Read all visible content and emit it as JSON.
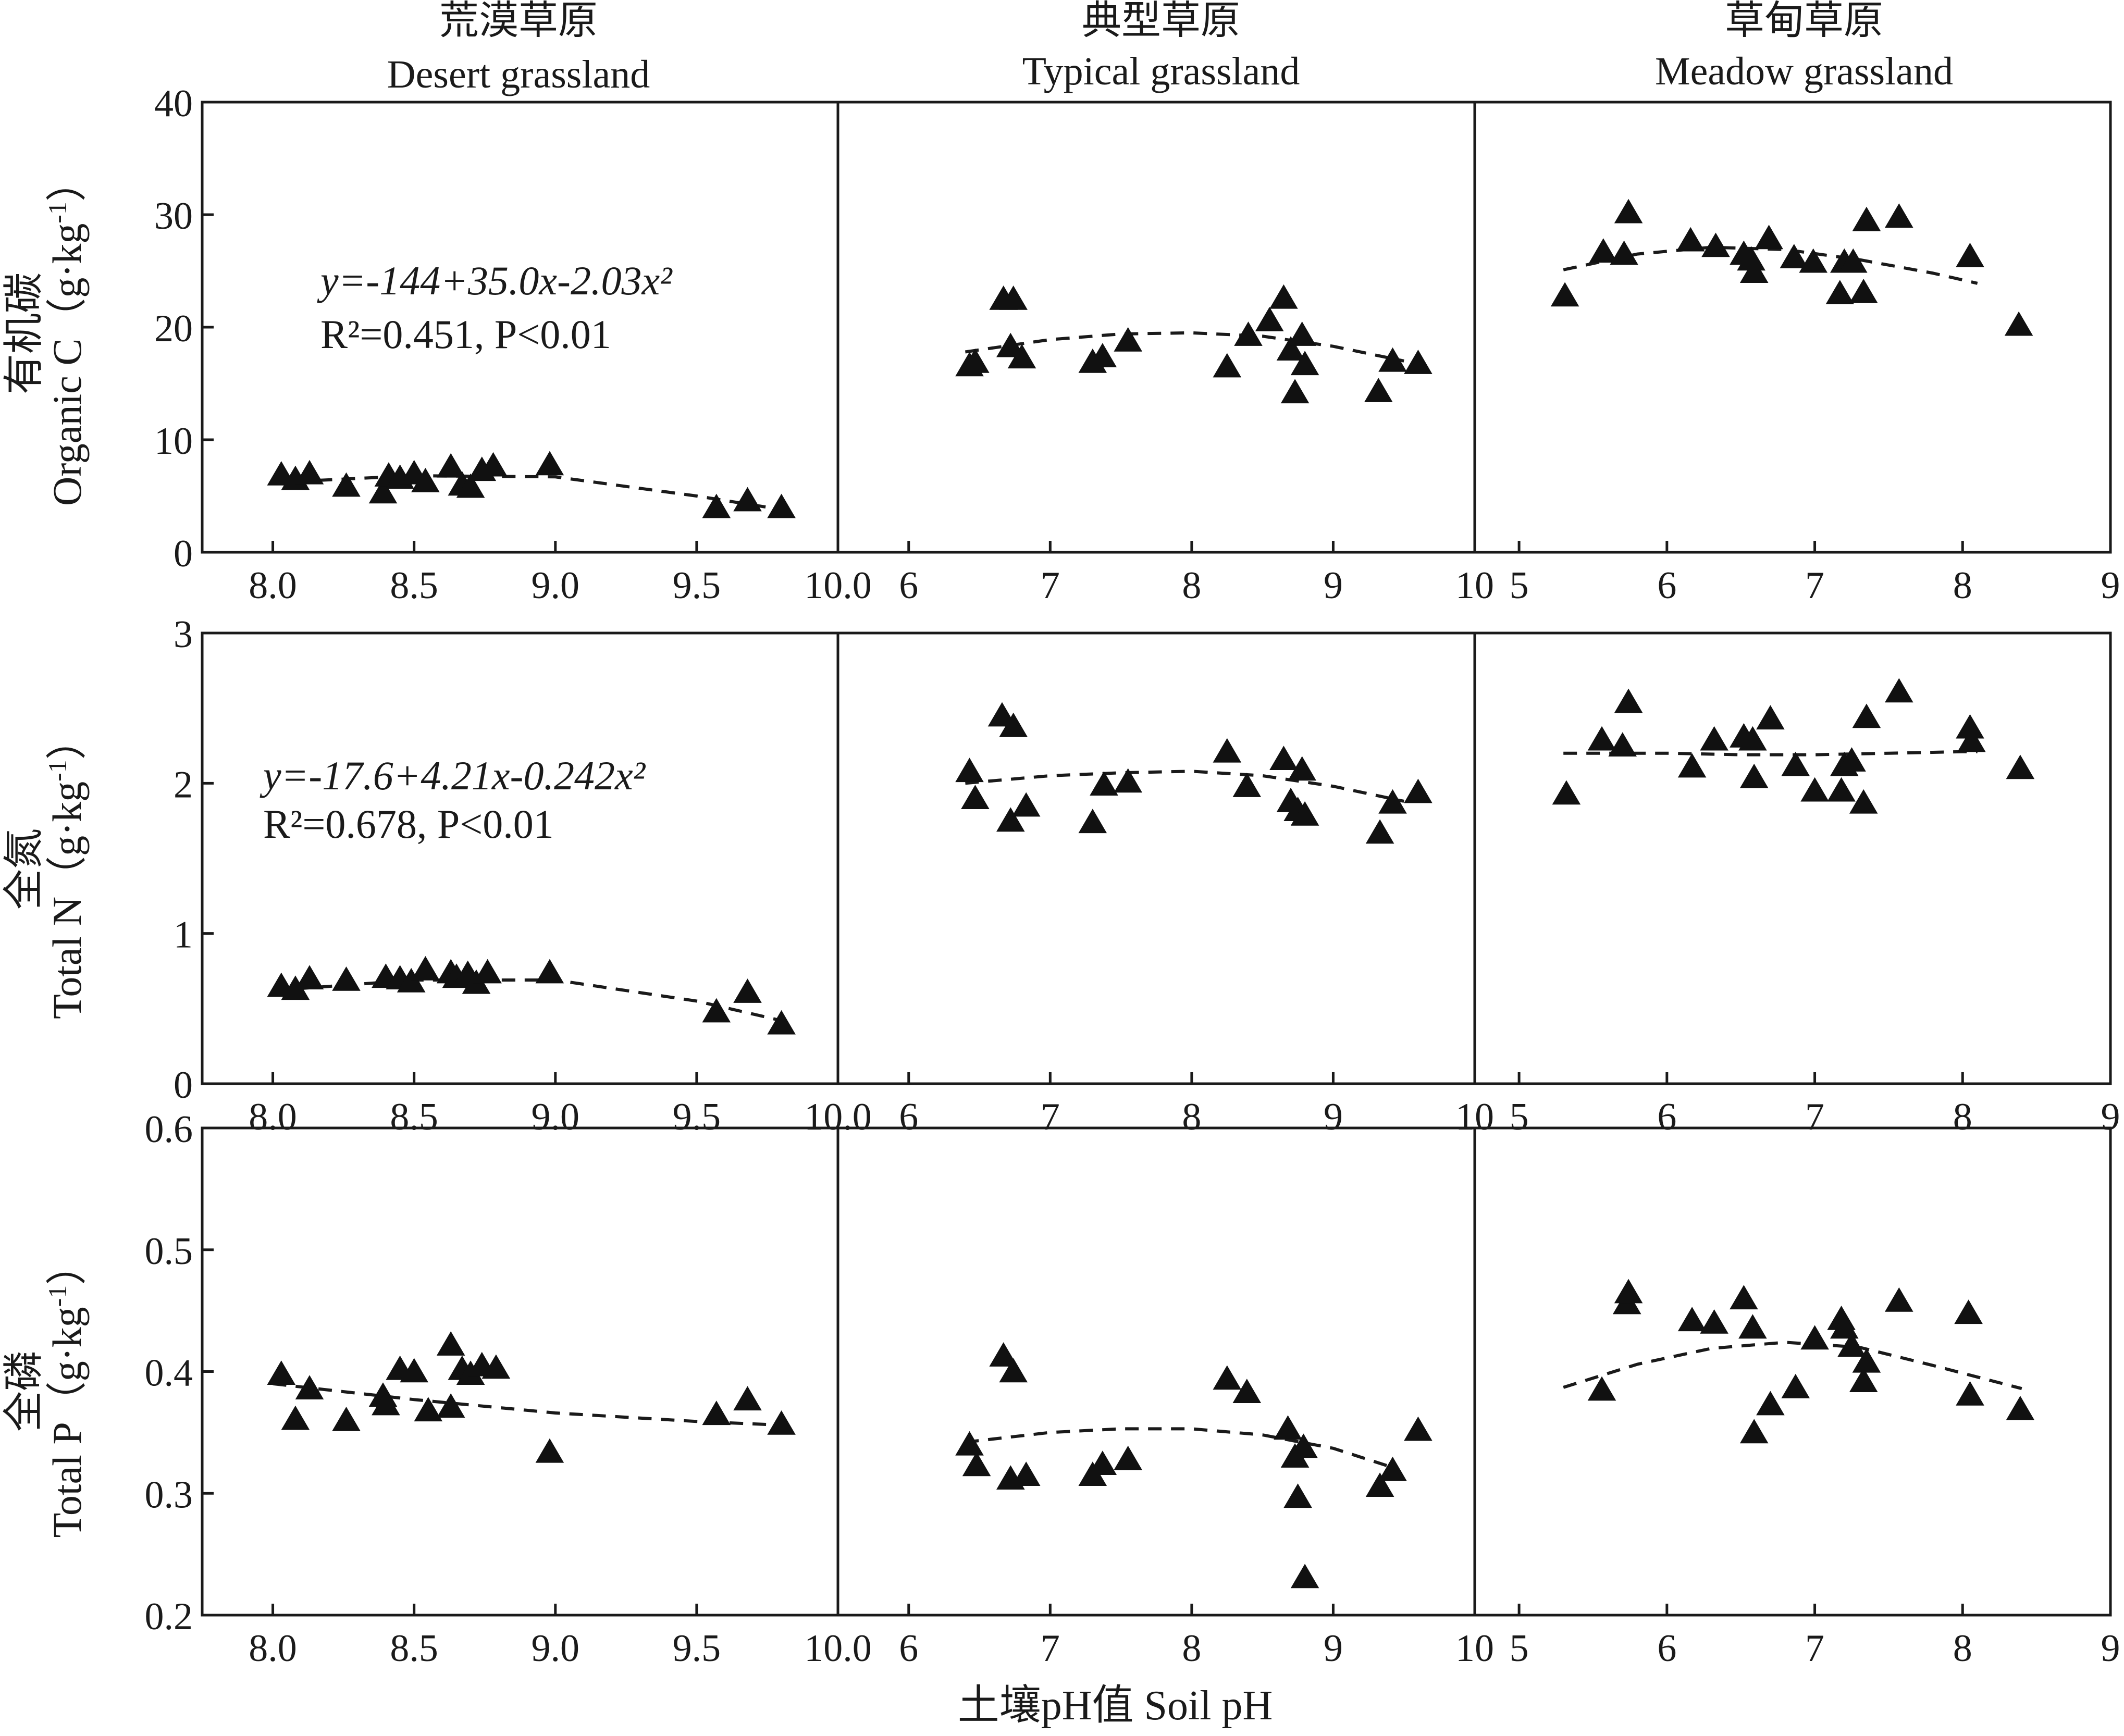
{
  "figure": {
    "column_titles": [
      {
        "cn": "荒漠草原",
        "en": "Desert grassland"
      },
      {
        "cn": "典型草原",
        "en": "Typical grassland"
      },
      {
        "cn": "草甸草原",
        "en": "Meadow grassland"
      }
    ],
    "x_axis_label": "土壤pH值 Soil pH",
    "row_labels": [
      {
        "cn": "有机碳",
        "en": "Organic C（g·kg",
        "unit_sup": "-1",
        "close": "）"
      },
      {
        "cn": "全氮",
        "en": "Total N（g·kg",
        "unit_sup": "-1",
        "close": "）"
      },
      {
        "cn": "全磷",
        "en": "Total P（g·kg",
        "unit_sup": "-1",
        "close": "）"
      }
    ],
    "equations": [
      {
        "line1": "y=-144+35.0x-2.03x²",
        "line2": "R²=0.451, P<0.01"
      },
      {
        "line1": "y=-17.6+4.21x-0.242x²",
        "line2": "R²=0.678, P<0.01"
      }
    ]
  },
  "chart_data": {
    "type": "scatter",
    "marker": "filled-triangle",
    "fit": "quadratic-dashed",
    "x_axes": [
      {
        "panel_column": 0,
        "xlim": [
          7.75,
          10.0
        ],
        "ticks": [
          8.0,
          8.5,
          9.0,
          9.5,
          10.0
        ],
        "tick_labels": [
          "8.0",
          "8.5",
          "9.0",
          "9.5",
          "10.0"
        ]
      },
      {
        "panel_column": 1,
        "xlim": [
          5.5,
          10
        ],
        "ticks": [
          6,
          7,
          8,
          9,
          10
        ],
        "tick_labels": [
          "6",
          "7",
          "8",
          "9",
          "10"
        ]
      },
      {
        "panel_column": 2,
        "xlim": [
          4.7,
          9
        ],
        "ticks": [
          5,
          6,
          7,
          8,
          9
        ],
        "tick_labels": [
          "5",
          "6",
          "7",
          "8",
          "9"
        ]
      }
    ],
    "y_axes": [
      {
        "panel_row": 0,
        "ylim": [
          0,
          40
        ],
        "ticks": [
          0,
          10,
          20,
          30,
          40
        ],
        "tick_labels": [
          "0",
          "10",
          "20",
          "30",
          "40"
        ]
      },
      {
        "panel_row": 1,
        "ylim": [
          0,
          3
        ],
        "ticks": [
          0,
          1,
          2,
          3
        ],
        "tick_labels": [
          "0",
          "1",
          "2",
          "3"
        ]
      },
      {
        "panel_row": 2,
        "ylim": [
          0.2,
          0.6
        ],
        "ticks": [
          0.2,
          0.3,
          0.4,
          0.5,
          0.6
        ],
        "tick_labels": [
          "0.2",
          "0.3",
          "0.4",
          "0.5",
          "0.6"
        ]
      }
    ],
    "panels": [
      {
        "row": 0,
        "col": 0,
        "fit_curve": [
          [
            8.0,
            6.2
          ],
          [
            8.5,
            6.8
          ],
          [
            9.0,
            6.7
          ],
          [
            9.5,
            5.0
          ],
          [
            9.8,
            3.8
          ]
        ],
        "points": [
          [
            8.03,
            6.9
          ],
          [
            8.08,
            6.5
          ],
          [
            8.13,
            7.0
          ],
          [
            8.26,
            5.9
          ],
          [
            8.39,
            5.3
          ],
          [
            8.41,
            6.8
          ],
          [
            8.45,
            6.6
          ],
          [
            8.5,
            7.0
          ],
          [
            8.54,
            6.3
          ],
          [
            8.63,
            7.6
          ],
          [
            8.67,
            6.0
          ],
          [
            8.7,
            5.8
          ],
          [
            8.74,
            7.3
          ],
          [
            8.78,
            7.7
          ],
          [
            8.98,
            7.8
          ],
          [
            9.57,
            4.0
          ],
          [
            9.68,
            4.6
          ],
          [
            9.8,
            4.0
          ]
        ]
      },
      {
        "row": 0,
        "col": 1,
        "fit_curve": [
          [
            6.4,
            17.8
          ],
          [
            7.0,
            18.9
          ],
          [
            7.5,
            19.4
          ],
          [
            8.0,
            19.5
          ],
          [
            8.5,
            19.2
          ],
          [
            9.0,
            18.3
          ],
          [
            9.5,
            17.0
          ]
        ],
        "points": [
          [
            6.43,
            16.6
          ],
          [
            6.47,
            16.9
          ],
          [
            6.67,
            22.5
          ],
          [
            6.72,
            18.3
          ],
          [
            6.74,
            22.5
          ],
          [
            6.8,
            17.3
          ],
          [
            7.3,
            16.9
          ],
          [
            7.37,
            17.4
          ],
          [
            7.55,
            18.8
          ],
          [
            8.25,
            16.5
          ],
          [
            8.4,
            19.3
          ],
          [
            8.55,
            20.6
          ],
          [
            8.65,
            22.6
          ],
          [
            8.7,
            18.0
          ],
          [
            8.73,
            14.2
          ],
          [
            8.78,
            19.3
          ],
          [
            8.8,
            16.7
          ],
          [
            9.32,
            14.3
          ],
          [
            9.42,
            17.0
          ],
          [
            9.6,
            16.8
          ]
        ]
      },
      {
        "row": 0,
        "col": 2,
        "fit_curve": [
          [
            5.3,
            25.1
          ],
          [
            5.8,
            26.5
          ],
          [
            6.3,
            27.1
          ],
          [
            6.8,
            26.9
          ],
          [
            7.3,
            26.0
          ],
          [
            7.8,
            24.8
          ],
          [
            8.1,
            23.9
          ]
        ],
        "points": [
          [
            5.31,
            22.8
          ],
          [
            5.57,
            26.7
          ],
          [
            5.71,
            26.5
          ],
          [
            5.74,
            30.2
          ],
          [
            6.16,
            27.7
          ],
          [
            6.33,
            27.2
          ],
          [
            6.52,
            26.5
          ],
          [
            6.57,
            26.0
          ],
          [
            6.59,
            24.9
          ],
          [
            6.69,
            27.9
          ],
          [
            6.86,
            26.2
          ],
          [
            6.99,
            25.8
          ],
          [
            7.17,
            23.0
          ],
          [
            7.2,
            25.8
          ],
          [
            7.26,
            25.8
          ],
          [
            7.33,
            23.1
          ],
          [
            7.35,
            29.5
          ],
          [
            7.57,
            29.8
          ],
          [
            8.05,
            26.3
          ],
          [
            8.38,
            20.2
          ]
        ]
      },
      {
        "row": 1,
        "col": 0,
        "fit_curve": [
          [
            8.0,
            0.62
          ],
          [
            8.5,
            0.69
          ],
          [
            9.0,
            0.69
          ],
          [
            9.5,
            0.55
          ],
          [
            9.8,
            0.42
          ]
        ],
        "points": [
          [
            8.03,
            0.65
          ],
          [
            8.08,
            0.63
          ],
          [
            8.13,
            0.7
          ],
          [
            8.26,
            0.69
          ],
          [
            8.4,
            0.71
          ],
          [
            8.45,
            0.7
          ],
          [
            8.49,
            0.68
          ],
          [
            8.54,
            0.76
          ],
          [
            8.63,
            0.74
          ],
          [
            8.65,
            0.71
          ],
          [
            8.69,
            0.73
          ],
          [
            8.72,
            0.67
          ],
          [
            8.76,
            0.74
          ],
          [
            8.98,
            0.74
          ],
          [
            9.57,
            0.48
          ],
          [
            9.68,
            0.61
          ],
          [
            9.8,
            0.4
          ]
        ]
      },
      {
        "row": 1,
        "col": 1,
        "fit_curve": [
          [
            6.4,
            2.0
          ],
          [
            7.0,
            2.05
          ],
          [
            7.5,
            2.07
          ],
          [
            8.0,
            2.08
          ],
          [
            8.5,
            2.05
          ],
          [
            9.0,
            1.98
          ],
          [
            9.5,
            1.88
          ]
        ],
        "points": [
          [
            6.43,
            2.08
          ],
          [
            6.47,
            1.9
          ],
          [
            6.66,
            2.45
          ],
          [
            6.72,
            1.75
          ],
          [
            6.74,
            2.38
          ],
          [
            6.83,
            1.85
          ],
          [
            7.3,
            1.74
          ],
          [
            7.38,
            1.99
          ],
          [
            7.55,
            2.01
          ],
          [
            8.25,
            2.21
          ],
          [
            8.39,
            1.98
          ],
          [
            8.65,
            2.16
          ],
          [
            8.7,
            1.88
          ],
          [
            8.75,
            1.82
          ],
          [
            8.78,
            2.09
          ],
          [
            8.8,
            1.79
          ],
          [
            9.33,
            1.67
          ],
          [
            9.42,
            1.87
          ],
          [
            9.6,
            1.94
          ]
        ]
      },
      {
        "row": 1,
        "col": 2,
        "fit_curve": [
          [
            5.3,
            2.2
          ],
          [
            6.0,
            2.2
          ],
          [
            6.5,
            2.19
          ],
          [
            7.0,
            2.19
          ],
          [
            7.5,
            2.2
          ],
          [
            8.0,
            2.21
          ],
          [
            8.1,
            2.21
          ]
        ],
        "points": [
          [
            5.32,
            1.93
          ],
          [
            5.56,
            2.29
          ],
          [
            5.7,
            2.25
          ],
          [
            5.74,
            2.54
          ],
          [
            6.17,
            2.11
          ],
          [
            6.32,
            2.29
          ],
          [
            6.52,
            2.31
          ],
          [
            6.58,
            2.29
          ],
          [
            6.59,
            2.04
          ],
          [
            6.7,
            2.43
          ],
          [
            6.87,
            2.12
          ],
          [
            7.0,
            1.95
          ],
          [
            7.18,
            1.95
          ],
          [
            7.2,
            2.12
          ],
          [
            7.25,
            2.15
          ],
          [
            7.33,
            1.87
          ],
          [
            7.35,
            2.44
          ],
          [
            7.57,
            2.61
          ],
          [
            8.05,
            2.37
          ],
          [
            8.06,
            2.28
          ],
          [
            8.39,
            2.1
          ]
        ]
      },
      {
        "row": 2,
        "col": 0,
        "fit_curve": [
          [
            8.0,
            0.39
          ],
          [
            8.5,
            0.377
          ],
          [
            9.0,
            0.366
          ],
          [
            9.5,
            0.359
          ],
          [
            9.8,
            0.356
          ]
        ],
        "points": [
          [
            8.03,
            0.398
          ],
          [
            8.08,
            0.361
          ],
          [
            8.13,
            0.386
          ],
          [
            8.26,
            0.36
          ],
          [
            8.39,
            0.38
          ],
          [
            8.4,
            0.373
          ],
          [
            8.45,
            0.402
          ],
          [
            8.5,
            0.4
          ],
          [
            8.55,
            0.368
          ],
          [
            8.63,
            0.422
          ],
          [
            8.63,
            0.371
          ],
          [
            8.67,
            0.402
          ],
          [
            8.7,
            0.398
          ],
          [
            8.74,
            0.405
          ],
          [
            8.79,
            0.403
          ],
          [
            8.98,
            0.334
          ],
          [
            9.57,
            0.365
          ],
          [
            9.68,
            0.377
          ],
          [
            9.8,
            0.357
          ]
        ]
      },
      {
        "row": 2,
        "col": 1,
        "fit_curve": [
          [
            6.4,
            0.342
          ],
          [
            7.0,
            0.35
          ],
          [
            7.5,
            0.353
          ],
          [
            8.0,
            0.353
          ],
          [
            8.5,
            0.348
          ],
          [
            9.0,
            0.337
          ],
          [
            9.4,
            0.322
          ]
        ],
        "points": [
          [
            6.43,
            0.34
          ],
          [
            6.48,
            0.323
          ],
          [
            6.67,
            0.413
          ],
          [
            6.72,
            0.312
          ],
          [
            6.74,
            0.4
          ],
          [
            6.83,
            0.315
          ],
          [
            7.3,
            0.315
          ],
          [
            7.37,
            0.324
          ],
          [
            7.55,
            0.328
          ],
          [
            8.25,
            0.394
          ],
          [
            8.39,
            0.383
          ],
          [
            8.68,
            0.353
          ],
          [
            8.73,
            0.33
          ],
          [
            8.75,
            0.297
          ],
          [
            8.79,
            0.338
          ],
          [
            8.8,
            0.231
          ],
          [
            9.33,
            0.306
          ],
          [
            9.42,
            0.319
          ],
          [
            9.6,
            0.352
          ]
        ]
      },
      {
        "row": 2,
        "col": 2,
        "fit_curve": [
          [
            5.3,
            0.387
          ],
          [
            5.8,
            0.406
          ],
          [
            6.3,
            0.419
          ],
          [
            6.8,
            0.424
          ],
          [
            7.3,
            0.42
          ],
          [
            7.8,
            0.405
          ],
          [
            8.4,
            0.386
          ]
        ],
        "points": [
          [
            5.56,
            0.385
          ],
          [
            5.73,
            0.456
          ],
          [
            5.74,
            0.465
          ],
          [
            6.17,
            0.442
          ],
          [
            6.32,
            0.44
          ],
          [
            6.52,
            0.46
          ],
          [
            6.58,
            0.436
          ],
          [
            6.59,
            0.35
          ],
          [
            6.7,
            0.373
          ],
          [
            6.87,
            0.387
          ],
          [
            7.0,
            0.427
          ],
          [
            7.18,
            0.443
          ],
          [
            7.2,
            0.436
          ],
          [
            7.25,
            0.421
          ],
          [
            7.33,
            0.392
          ],
          [
            7.35,
            0.408
          ],
          [
            7.57,
            0.458
          ],
          [
            8.04,
            0.448
          ],
          [
            8.05,
            0.381
          ],
          [
            8.39,
            0.369
          ]
        ]
      }
    ]
  }
}
